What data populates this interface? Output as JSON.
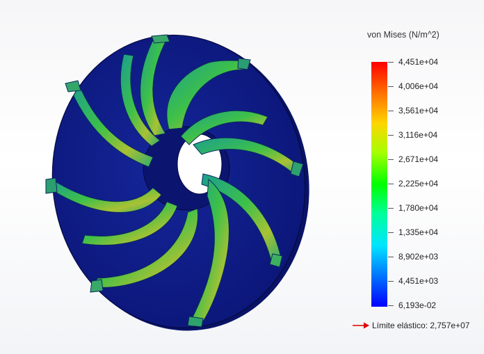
{
  "plot": {
    "title": "von Mises (N/m^2)",
    "colormap": [
      "#ff0000",
      "#ff6a00",
      "#ffd500",
      "#a6ff00",
      "#00ff00",
      "#00ff9a",
      "#00e5ff",
      "#0078ff",
      "#0000ff"
    ],
    "tick_labels": [
      "4,451e+04",
      "4,006e+04",
      "3,561e+04",
      "3,116e+04",
      "2,671e+04",
      "2,225e+04",
      "1,780e+04",
      "1,335e+04",
      "8,902e+03",
      "4,451e+03",
      "6,193e-02"
    ],
    "yield_label": "Límite elástico: 2,757e+07",
    "yield_arrow_color": "#e00000"
  },
  "model": {
    "name": "impeller",
    "disk_color": "#101e8a",
    "blade_colors": [
      "#1a9a8a",
      "#3fc048",
      "#b4c231"
    ]
  }
}
